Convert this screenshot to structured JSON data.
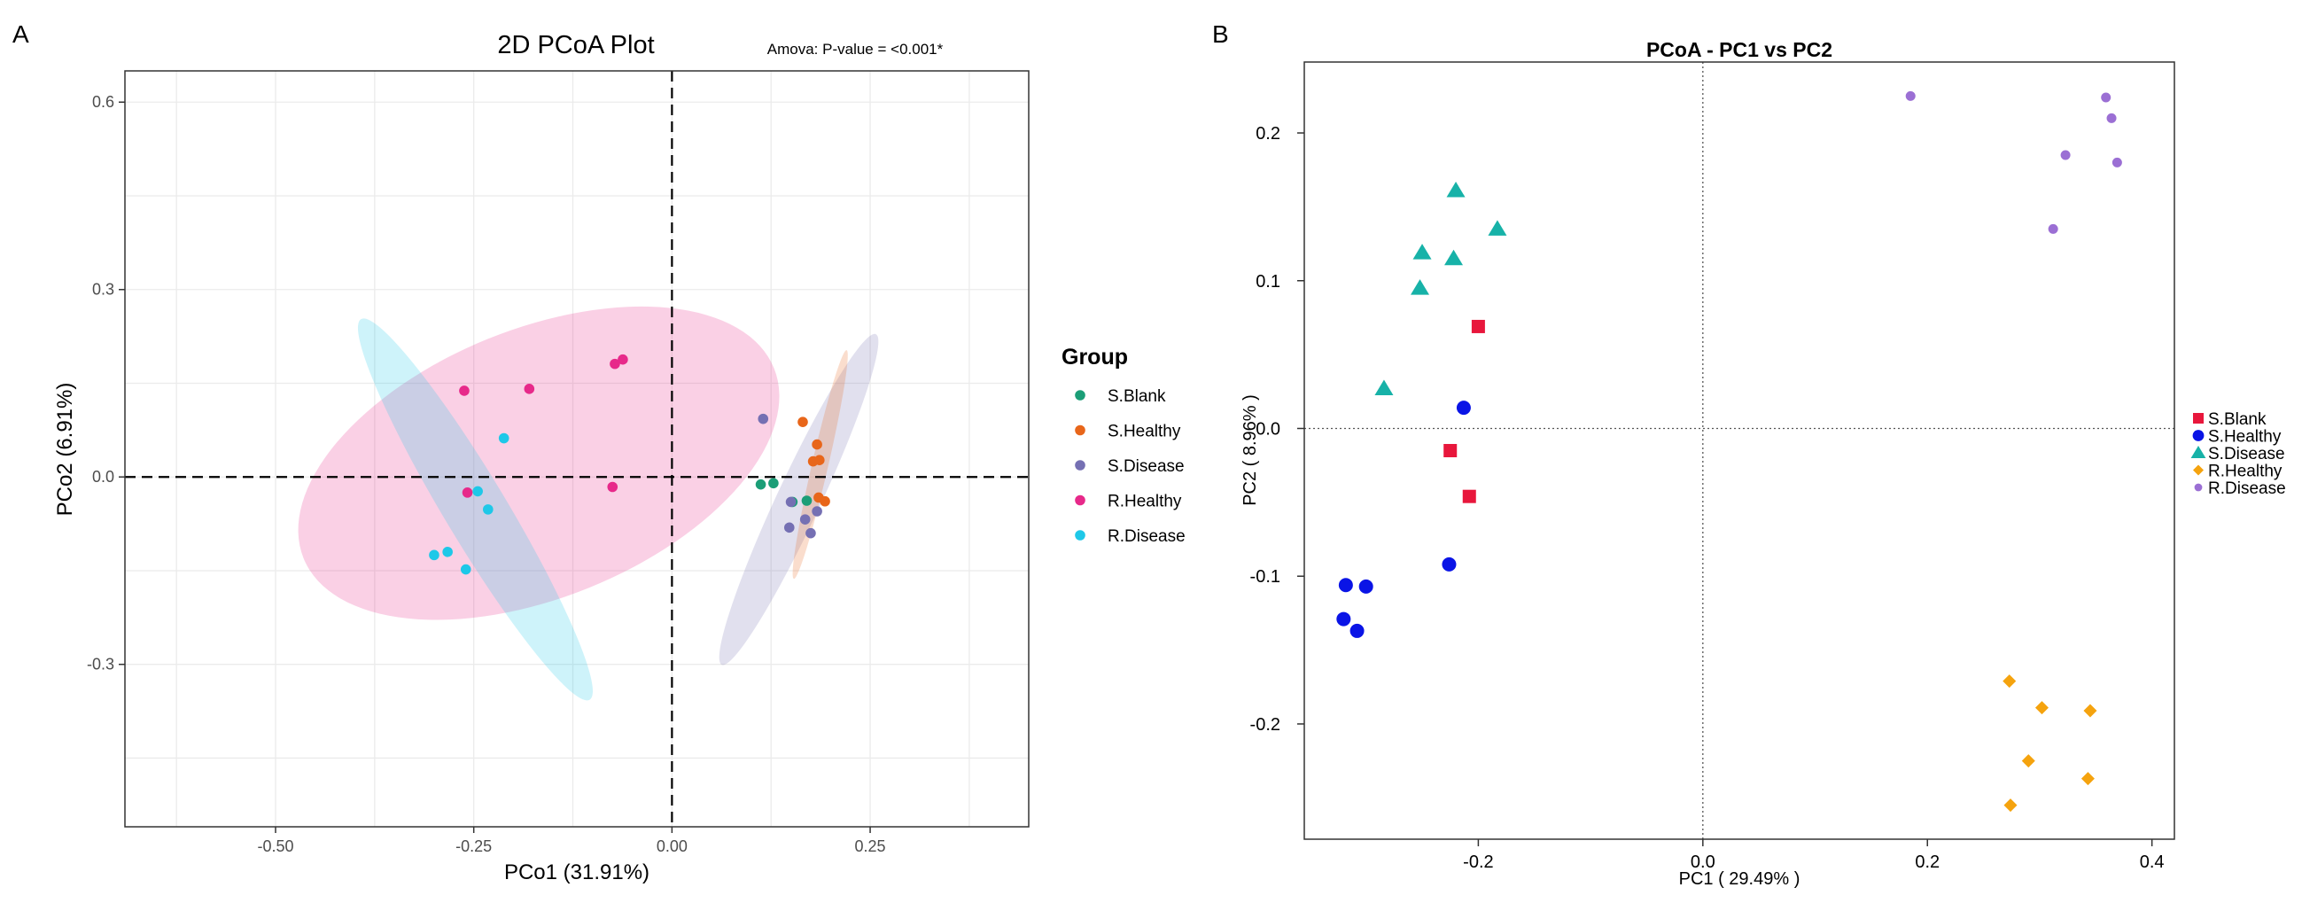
{
  "chart_data": [
    {
      "panel_label": "A",
      "type": "scatter",
      "title": "2D PCoA Plot",
      "annotation": "Amova: P-value = <0.001*",
      "xlabel": "PCo1 (31.91%)",
      "ylabel": "PCo2 (6.91%)",
      "xlim": [
        -0.69,
        0.45
      ],
      "ylim": [
        -0.56,
        0.65
      ],
      "xticks": [
        -0.5,
        -0.25,
        0.0,
        0.25
      ],
      "xtick_labels": [
        "-0.50",
        "-0.25",
        "0.00",
        "0.25"
      ],
      "yticks": [
        -0.3,
        0.0,
        0.3,
        0.6
      ],
      "ytick_labels": [
        "-0.3",
        "0.0",
        "0.3",
        "0.6"
      ],
      "grid": true,
      "legend_title": "Group",
      "legend_position": "right",
      "series": [
        {
          "name": "S.Blank",
          "color": "#1b9e77",
          "points": [
            [
              0.112,
              -0.012
            ],
            [
              0.128,
              -0.01
            ],
            [
              0.17,
              -0.038
            ],
            [
              0.152,
              -0.04
            ]
          ]
        },
        {
          "name": "S.Healthy",
          "color": "#e8661a",
          "points": [
            [
              0.165,
              0.088
            ],
            [
              0.183,
              0.052
            ],
            [
              0.178,
              0.025
            ],
            [
              0.186,
              0.027
            ],
            [
              0.185,
              -0.033
            ],
            [
              0.193,
              -0.039
            ]
          ]
        },
        {
          "name": "S.Disease",
          "color": "#7570b3",
          "points": [
            [
              0.115,
              0.093
            ],
            [
              0.15,
              -0.04
            ],
            [
              0.168,
              -0.068
            ],
            [
              0.148,
              -0.081
            ],
            [
              0.175,
              -0.09
            ],
            [
              0.183,
              -0.055
            ]
          ]
        },
        {
          "name": "R.Healthy",
          "color": "#e7298a",
          "points": [
            [
              -0.262,
              0.138
            ],
            [
              -0.18,
              0.141
            ],
            [
              -0.072,
              0.181
            ],
            [
              -0.062,
              0.188
            ],
            [
              -0.075,
              -0.016
            ],
            [
              -0.258,
              -0.025
            ]
          ]
        },
        {
          "name": "R.Disease",
          "color": "#1ec8e8",
          "points": [
            [
              -0.212,
              0.062
            ],
            [
              -0.245,
              -0.023
            ],
            [
              -0.232,
              -0.052
            ],
            [
              -0.283,
              -0.12
            ],
            [
              -0.3,
              -0.125
            ],
            [
              -0.26,
              -0.148
            ]
          ]
        }
      ],
      "ellipses": [
        {
          "group": "R.Healthy",
          "cx": -0.168,
          "cy": 0.022,
          "rx": 0.32,
          "ry": 0.215,
          "angle": -22
        },
        {
          "group": "R.Disease",
          "cx": -0.248,
          "cy": -0.052,
          "rx": 0.28,
          "ry": 0.05,
          "angle": 59
        },
        {
          "group": "S.Disease",
          "cx": 0.16,
          "cy": -0.036,
          "rx": 0.23,
          "ry": 0.035,
          "angle": -65
        },
        {
          "group": "S.Healthy",
          "cx": 0.187,
          "cy": 0.02,
          "rx": 0.148,
          "ry": 0.013,
          "angle": -77
        }
      ]
    },
    {
      "panel_label": "B",
      "type": "scatter",
      "title": "PCoA - PC1 vs PC2",
      "xlabel": "PC1 ( 29.49% )",
      "ylabel": "PC2 ( 8.96% )",
      "xlim": [
        -0.355,
        0.42
      ],
      "ylim": [
        -0.278,
        0.248
      ],
      "xticks": [
        -0.2,
        0.0,
        0.2,
        0.4
      ],
      "xtick_labels": [
        "-0.2",
        "0.0",
        "0.2",
        "0.4"
      ],
      "yticks": [
        -0.2,
        -0.1,
        0.0,
        0.1,
        0.2
      ],
      "ytick_labels": [
        "-0.2",
        "-0.1",
        "0.0",
        "0.1",
        "0.2"
      ],
      "grid": false,
      "legend_position": "right",
      "series": [
        {
          "name": "S.Blank",
          "color": "#e8173c",
          "shape": "square",
          "points": [
            [
              -0.2,
              0.069
            ],
            [
              -0.225,
              -0.015
            ],
            [
              -0.208,
              -0.046
            ]
          ]
        },
        {
          "name": "S.Healthy",
          "color": "#0a14e6",
          "shape": "circle",
          "points": [
            [
              -0.213,
              0.014
            ],
            [
              -0.226,
              -0.092
            ],
            [
              -0.318,
              -0.106
            ],
            [
              -0.3,
              -0.107
            ],
            [
              -0.32,
              -0.129
            ],
            [
              -0.308,
              -0.137
            ]
          ]
        },
        {
          "name": "S.Disease",
          "color": "#17b2a8",
          "shape": "triangle",
          "points": [
            [
              -0.22,
              0.161
            ],
            [
              -0.183,
              0.135
            ],
            [
              -0.25,
              0.119
            ],
            [
              -0.222,
              0.115
            ],
            [
              -0.252,
              0.095
            ],
            [
              -0.284,
              0.027
            ]
          ]
        },
        {
          "name": "R.Healthy",
          "color": "#f5a30e",
          "shape": "diamond",
          "points": [
            [
              0.273,
              -0.171
            ],
            [
              0.302,
              -0.189
            ],
            [
              0.345,
              -0.191
            ],
            [
              0.29,
              -0.225
            ],
            [
              0.343,
              -0.237
            ],
            [
              0.274,
              -0.255
            ]
          ]
        },
        {
          "name": "R.Disease",
          "color": "#9b6fd4",
          "shape": "circle-small",
          "points": [
            [
              0.185,
              0.225
            ],
            [
              0.359,
              0.224
            ],
            [
              0.364,
              0.21
            ],
            [
              0.323,
              0.185
            ],
            [
              0.369,
              0.18
            ],
            [
              0.312,
              0.135
            ]
          ]
        }
      ]
    }
  ]
}
